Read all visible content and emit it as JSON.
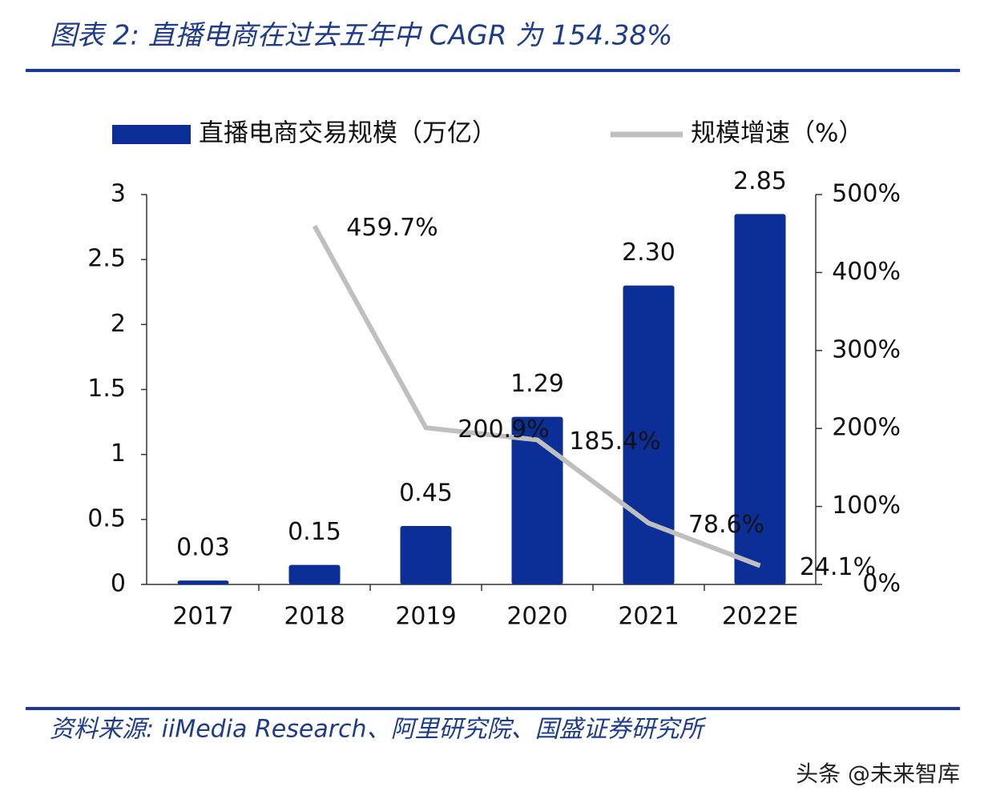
{
  "chart_data": {
    "type": "bar",
    "title": "图表 2: 直播电商在过去五年中 CAGR 为 154.38%",
    "source": "资料来源: iiMedia Research、阿里研究院、国盛证券研究所",
    "watermark": "头条 @未来智库",
    "categories": [
      "2017",
      "2018",
      "2019",
      "2020",
      "2021",
      "2022E"
    ],
    "series": [
      {
        "name": "直播电商交易规模（万亿）",
        "type": "bar",
        "color": "#0b2f96",
        "values": [
          0.03,
          0.15,
          0.45,
          1.29,
          2.3,
          2.85
        ],
        "value_labels": [
          "0.03",
          "0.15",
          "0.45",
          "1.29",
          "2.30",
          "2.85"
        ]
      },
      {
        "name": "规模增速（%）",
        "type": "line",
        "axis": "y2",
        "color": "#bfbfbf",
        "values": [
          null,
          459.7,
          200.9,
          185.4,
          78.6,
          24.1
        ],
        "value_labels": [
          null,
          "459.7%",
          "200.9%",
          "185.4%",
          "78.6%",
          "24.1%"
        ]
      }
    ],
    "ylim": [
      0,
      3
    ],
    "yticks": [
      0,
      0.5,
      1,
      1.5,
      2,
      2.5,
      3
    ],
    "y2lim": [
      0,
      500
    ],
    "y2ticks": [
      {
        "value": 0,
        "label": "0%"
      },
      {
        "value": 100,
        "label": "100%"
      },
      {
        "value": 200,
        "label": "200%"
      },
      {
        "value": 300,
        "label": "300%"
      },
      {
        "value": 400,
        "label": "400%"
      },
      {
        "value": 500,
        "label": "500%"
      }
    ],
    "legend": "top"
  }
}
